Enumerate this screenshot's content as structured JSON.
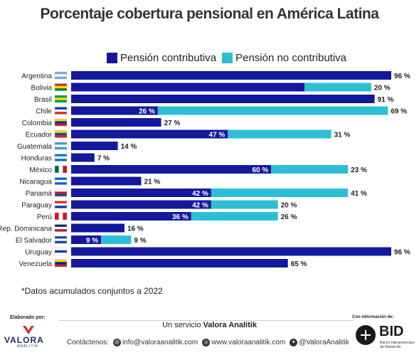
{
  "title": "Porcentaje cobertura pensional en América Latina",
  "note": "*Datos acumulados conjuntos a 2022",
  "footer": {
    "elaborado": "Elaborado por:",
    "valora_name": "VALORA",
    "valora_sub": "ANALITIK",
    "servicio_prefix": "Un servicio ",
    "servicio_brand": "Valora Analitik",
    "contact_label": "Contáctenos:",
    "email": "info@valoraanalitik.com",
    "web": "www.valoraanalitik.com",
    "twitter": "@ValoraAnalitik",
    "con_info": "Con información de:",
    "bid_name": "BID",
    "bid_sub": "Banco Interamericano de Desarrollo"
  },
  "colors": {
    "contributiva": "#14189b",
    "no_contributiva": "#2bbfd6"
  },
  "chart_data": {
    "type": "bar",
    "orientation": "horizontal",
    "stacked": true,
    "title": "Porcentaje cobertura pensional en América Latina",
    "legend_position": "top",
    "grid": false,
    "xlim": [
      0,
      96
    ],
    "categories": [
      "Argentina",
      "Bolivia",
      "Brasil",
      "Chile",
      "Colombia",
      "Ecuador",
      "Guatemala",
      "Honduras",
      "México",
      "Nicaragua",
      "Panamá",
      "Paraguay",
      "Perú",
      "Rep. Dominicana",
      "El Salvador",
      "Uruguay",
      "Venezuela"
    ],
    "series": [
      {
        "name": "Pensión contributiva",
        "values": [
          96,
          70,
          91,
          26,
          27,
          47,
          14,
          7,
          60,
          21,
          42,
          42,
          36,
          16,
          9,
          96,
          65
        ],
        "labels": [
          "96 %",
          "",
          "91 %",
          "26 %",
          "27 %",
          "47 %",
          "14 %",
          "7 %",
          "60 %",
          "21 %",
          "42 %",
          "42 %",
          "36 %",
          "16 %",
          "9 %",
          "96 %",
          "65 %"
        ]
      },
      {
        "name": "Pensión no contributiva",
        "values": [
          0,
          20,
          0,
          69,
          0,
          31,
          0,
          0,
          23,
          0,
          41,
          20,
          26,
          0,
          9,
          0,
          0
        ],
        "labels": [
          "",
          "20 %",
          "",
          "69 %",
          "",
          "31 %",
          "",
          "",
          "23 %",
          "",
          "41 %",
          "20 %",
          "26 %",
          "",
          "9 %",
          "",
          ""
        ]
      }
    ]
  }
}
